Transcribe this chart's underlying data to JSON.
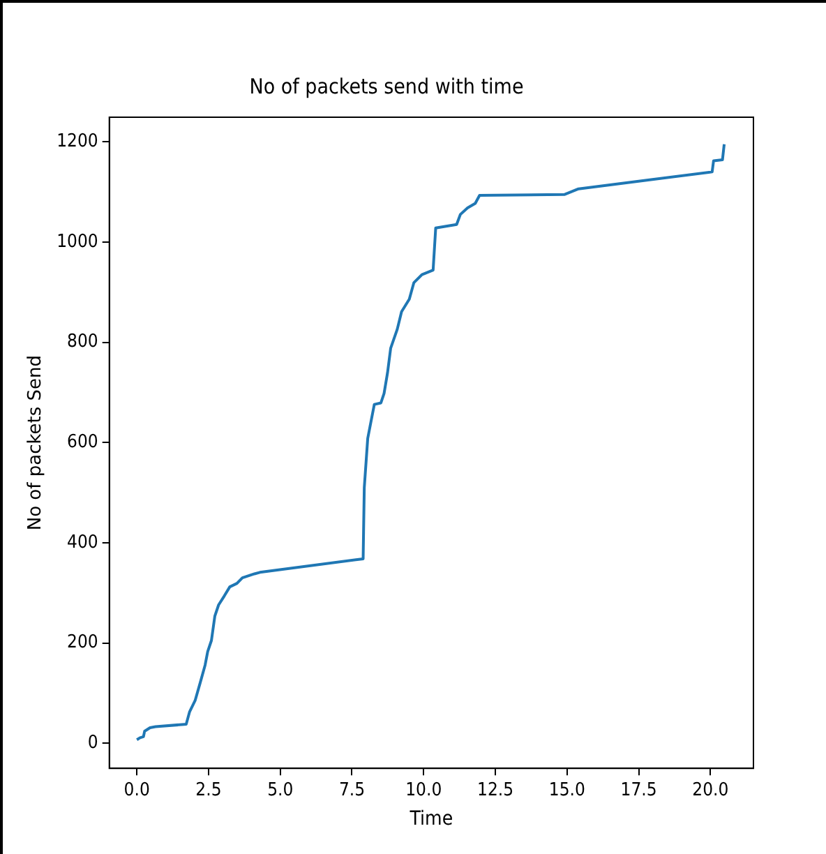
{
  "chart_data": {
    "type": "line",
    "title": "No of packets send with time",
    "xlabel": "Time",
    "ylabel": "No of packets Send",
    "xlim": [
      -0.96,
      21.5
    ],
    "xticks": [
      {
        "value": 0,
        "label": "0.0"
      },
      {
        "value": 2.5,
        "label": "2.5"
      },
      {
        "value": 5,
        "label": "5.0"
      },
      {
        "value": 7.5,
        "label": "7.5"
      },
      {
        "value": 10,
        "label": "10.0"
      },
      {
        "value": 12.5,
        "label": "12.5"
      },
      {
        "value": 15,
        "label": "15.0"
      },
      {
        "value": 17.5,
        "label": "17.5"
      },
      {
        "value": 20,
        "label": "20.0"
      }
    ],
    "ylim": [
      -50,
      1249
    ],
    "yticks": [
      0,
      200,
      400,
      600,
      800,
      1000,
      1200
    ],
    "grid": false,
    "legend": false,
    "marker": "none",
    "line_style": "solid",
    "series": [
      {
        "color": "#1f77b4",
        "x": [
          0,
          0.11,
          0.23,
          0.27,
          0.46,
          0.65,
          1.72,
          1.84,
          2.03,
          2.22,
          2.38,
          2.47,
          2.6,
          2.72,
          2.85,
          3.05,
          3.24,
          3.49,
          3.68,
          4.1,
          4.29,
          7.89,
          7.93,
          8.05,
          8.28,
          8.51,
          8.62,
          8.74,
          8.85,
          9.08,
          9.23,
          9.5,
          9.66,
          9.94,
          10.33,
          10.42,
          11.15,
          11.28,
          11.53,
          11.8,
          11.95,
          14.92,
          15.4,
          20.06,
          20.11,
          20.42,
          20.48
        ],
        "values": [
          7,
          11,
          13,
          24,
          31,
          33,
          38,
          63,
          85,
          123,
          156,
          183,
          205,
          254,
          276,
          294,
          312,
          319,
          330,
          338,
          341,
          368,
          510,
          608,
          676,
          679,
          698,
          739,
          788,
          826,
          861,
          886,
          919,
          935,
          944,
          1028,
          1035,
          1055,
          1068,
          1077,
          1093,
          1095,
          1106,
          1140,
          1162,
          1164,
          1195
        ]
      }
    ]
  }
}
